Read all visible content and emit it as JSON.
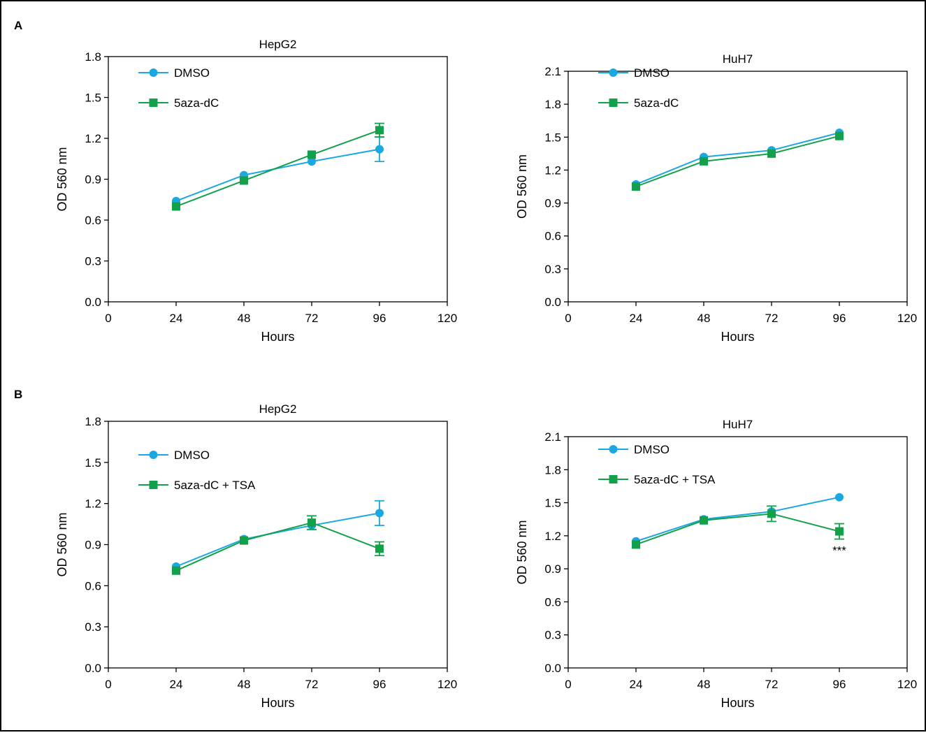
{
  "panel_labels": [
    "A",
    "B"
  ],
  "colors": {
    "dmso": "#1ba8e0",
    "treated": "#12a04a",
    "axis": "#000000"
  },
  "chart_data": [
    {
      "panel": "A",
      "type": "line",
      "title": "HepG2",
      "xlabel": "Hours",
      "ylabel": "OD 560 nm",
      "xlim": [
        0,
        120
      ],
      "ylim": [
        0,
        1.8
      ],
      "xticks": [
        0,
        24,
        48,
        72,
        96,
        120
      ],
      "yticks": [
        "0.0",
        "0.3",
        "0.6",
        "0.9",
        "1.2",
        "1.5",
        "1.8"
      ],
      "legend_position": "top-left",
      "series": [
        {
          "name": "DMSO",
          "marker": "circle",
          "color": "#1ba8e0",
          "x": [
            24,
            48,
            72,
            96
          ],
          "y": [
            0.74,
            0.93,
            1.03,
            1.12
          ],
          "err": [
            0,
            0,
            0,
            0.09
          ]
        },
        {
          "name": "5aza-dC",
          "marker": "square",
          "color": "#12a04a",
          "x": [
            24,
            48,
            72,
            96
          ],
          "y": [
            0.7,
            0.89,
            1.08,
            1.26
          ],
          "err": [
            0,
            0,
            0,
            0.05
          ]
        }
      ],
      "annotations": []
    },
    {
      "panel": "A",
      "type": "line",
      "title": "HuH7",
      "xlabel": "Hours",
      "ylabel": "OD 560 nm",
      "xlim": [
        0,
        120
      ],
      "ylim": [
        0,
        2.1
      ],
      "xticks": [
        0,
        24,
        48,
        72,
        96,
        120
      ],
      "yticks": [
        "0.0",
        "0.3",
        "0.6",
        "0.9",
        "1.2",
        "1.5",
        "1.8",
        "2.1"
      ],
      "legend_position": "top-left",
      "series": [
        {
          "name": "DMSO",
          "marker": "circle",
          "color": "#1ba8e0",
          "x": [
            24,
            48,
            72,
            96
          ],
          "y": [
            1.07,
            1.32,
            1.38,
            1.54
          ],
          "err": [
            0,
            0,
            0,
            0
          ]
        },
        {
          "name": "5aza-dC",
          "marker": "square",
          "color": "#12a04a",
          "x": [
            24,
            48,
            72,
            96
          ],
          "y": [
            1.05,
            1.28,
            1.35,
            1.51
          ],
          "err": [
            0,
            0,
            0,
            0
          ]
        }
      ],
      "annotations": []
    },
    {
      "panel": "B",
      "type": "line",
      "title": "HepG2",
      "xlabel": "Hours",
      "ylabel": "OD 560 nm",
      "xlim": [
        0,
        120
      ],
      "ylim": [
        0,
        1.8
      ],
      "xticks": [
        0,
        24,
        48,
        72,
        96,
        120
      ],
      "yticks": [
        "0.0",
        "0.3",
        "0.6",
        "0.9",
        "1.2",
        "1.5",
        "1.8"
      ],
      "legend_position": "top-left",
      "series": [
        {
          "name": "DMSO",
          "marker": "circle",
          "color": "#1ba8e0",
          "x": [
            24,
            48,
            72,
            96
          ],
          "y": [
            0.74,
            0.94,
            1.04,
            1.13
          ],
          "err": [
            0,
            0,
            0,
            0.09
          ]
        },
        {
          "name": "5aza-dC + TSA",
          "marker": "square",
          "color": "#12a04a",
          "x": [
            24,
            48,
            72,
            96
          ],
          "y": [
            0.71,
            0.93,
            1.06,
            0.87
          ],
          "err": [
            0,
            0,
            0.05,
            0.05
          ]
        }
      ],
      "annotations": []
    },
    {
      "panel": "B",
      "type": "line",
      "title": "HuH7",
      "xlabel": "Hours",
      "ylabel": "OD 560 nm",
      "xlim": [
        0,
        120
      ],
      "ylim": [
        0,
        2.1
      ],
      "xticks": [
        0,
        24,
        48,
        72,
        96,
        120
      ],
      "yticks": [
        "0.0",
        "0.3",
        "0.6",
        "0.9",
        "1.2",
        "1.5",
        "1.8",
        "2.1"
      ],
      "legend_position": "top-left",
      "series": [
        {
          "name": "DMSO",
          "marker": "circle",
          "color": "#1ba8e0",
          "x": [
            24,
            48,
            72,
            96
          ],
          "y": [
            1.15,
            1.35,
            1.42,
            1.55
          ],
          "err": [
            0,
            0,
            0,
            0
          ]
        },
        {
          "name": "5aza-dC + TSA",
          "marker": "square",
          "color": "#12a04a",
          "x": [
            24,
            48,
            72,
            96
          ],
          "y": [
            1.12,
            1.34,
            1.4,
            1.24
          ],
          "err": [
            0,
            0,
            0.07,
            0.07
          ]
        }
      ],
      "annotations": [
        {
          "text": "***",
          "x": 96,
          "series": "5aza-dC + TSA"
        }
      ]
    }
  ]
}
